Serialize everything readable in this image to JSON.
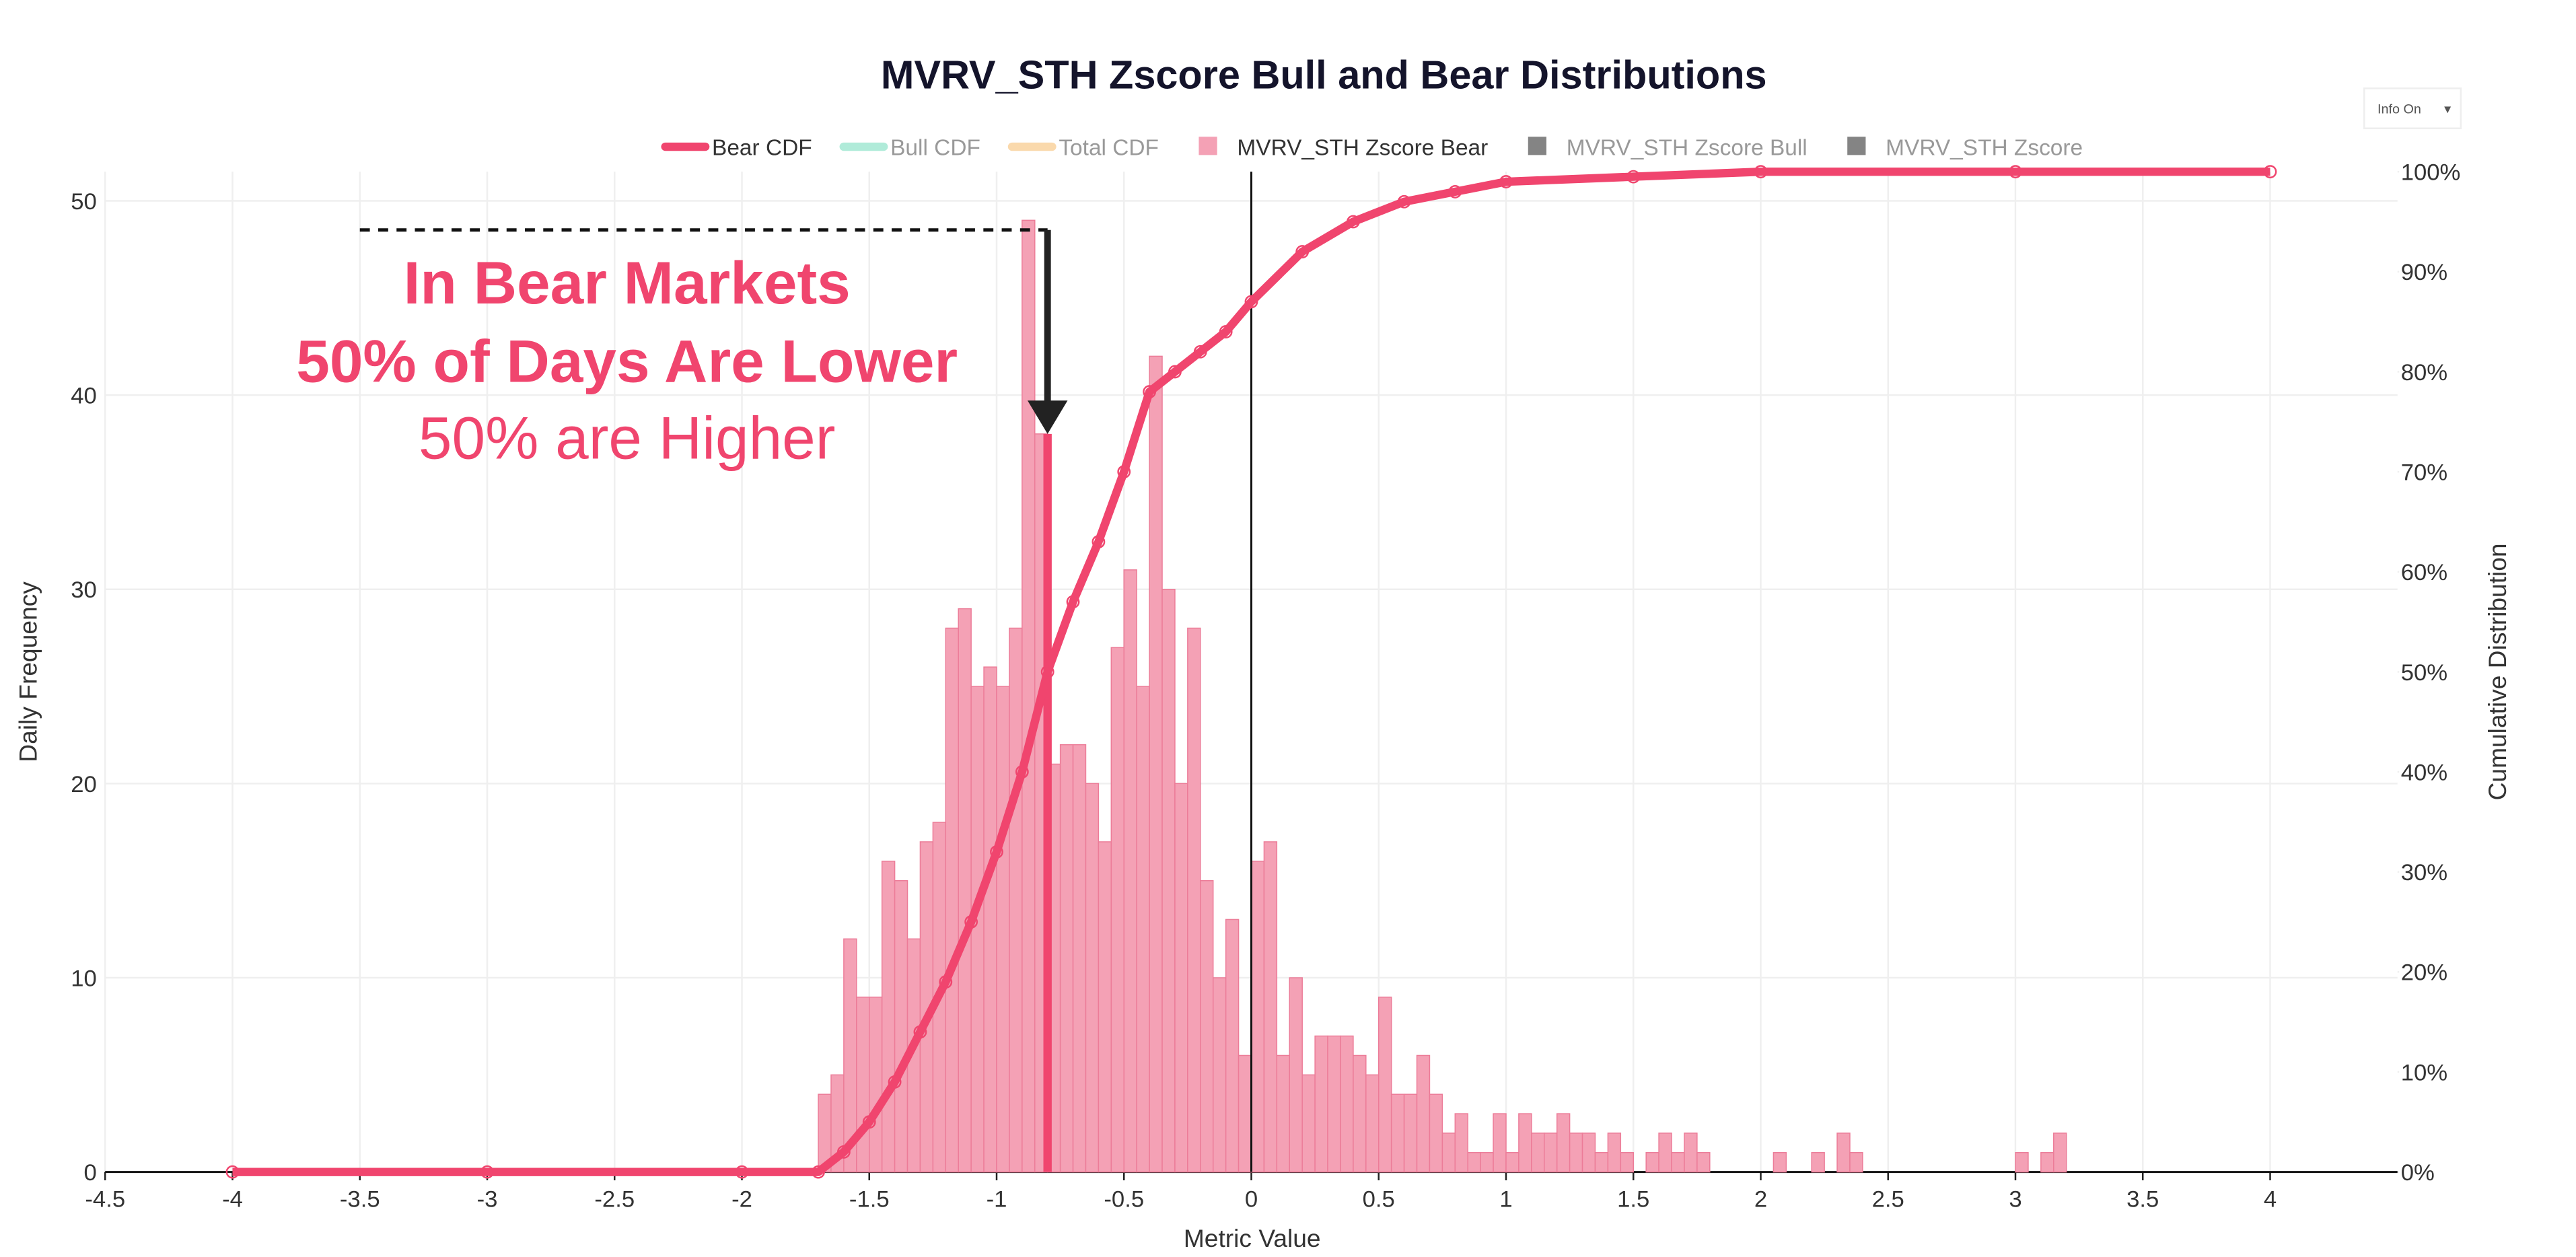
{
  "chart_data": {
    "type": "histogram",
    "title": "MVRV_STH Zscore Bull and Bear Distributions",
    "x_label": "Metric Value",
    "y_label": "Daily Frequency",
    "y2_label": "Cumulative Distribution",
    "xlim": [
      -4.5,
      4.5
    ],
    "xticks": [
      -4.5,
      -4,
      -3.5,
      -3,
      -2.5,
      -2,
      -1.5,
      -1,
      -0.5,
      0,
      0.5,
      1,
      1.5,
      2,
      2.5,
      3,
      3.5,
      4
    ],
    "ylim": [
      0,
      51.5
    ],
    "yticks": [
      0,
      10,
      20,
      30,
      40,
      50
    ],
    "y2lim": [
      0,
      100
    ],
    "y2ticks": [
      {
        "value": 0,
        "label": "0%"
      },
      {
        "value": 10,
        "label": "10%"
      },
      {
        "value": 20,
        "label": "20%"
      },
      {
        "value": 30,
        "label": "30%"
      },
      {
        "value": 40,
        "label": "40%"
      },
      {
        "value": 50,
        "label": "50%"
      },
      {
        "value": 60,
        "label": "60%"
      },
      {
        "value": 70,
        "label": "70%"
      },
      {
        "value": 80,
        "label": "80%"
      },
      {
        "value": 90,
        "label": "90%"
      },
      {
        "value": 100,
        "label": "100%"
      }
    ],
    "grid": true,
    "legend": "top",
    "series": [
      {
        "name": "Bear CDF",
        "color": "#f0456e",
        "type": "line",
        "axis": "y2",
        "visible": true,
        "x": [
          -4,
          -3,
          -2,
          -1.7,
          -1.6,
          -1.5,
          -1.4,
          -1.3,
          -1.2,
          -1.1,
          -1.0,
          -0.9,
          -0.8,
          -0.7,
          -0.6,
          -0.5,
          -0.4,
          -0.3,
          -0.2,
          -0.1,
          0,
          0.2,
          0.4,
          0.6,
          0.8,
          1.0,
          1.5,
          2.0,
          3.0,
          4.0
        ],
        "values": [
          0,
          0,
          0,
          0,
          2,
          5,
          9,
          14,
          19,
          25,
          32,
          40,
          50,
          57,
          63,
          70,
          78,
          80,
          82,
          84,
          87,
          92,
          95,
          97,
          98,
          99,
          99.5,
          100,
          100,
          100
        ]
      },
      {
        "name": "Bull CDF",
        "color": "#8fe3c9",
        "type": "line",
        "visible": false
      },
      {
        "name": "Total CDF",
        "color": "#f9c98a",
        "type": "line",
        "visible": false
      },
      {
        "name": "MVRV_STH Zscore Bear",
        "color": "#f4a1b5",
        "type": "histogram",
        "visible": true,
        "bins": [
          -1.7,
          -1.65,
          -1.6,
          -1.55,
          -1.5,
          -1.45,
          -1.4,
          -1.35,
          -1.3,
          -1.25,
          -1.2,
          -1.15,
          -1.1,
          -1.05,
          -1,
          -0.95,
          -0.9,
          -0.85,
          -0.8,
          -0.75,
          -0.7,
          -0.65,
          -0.6,
          -0.55,
          -0.5,
          -0.45,
          -0.4,
          -0.35,
          -0.3,
          -0.25,
          -0.2,
          -0.15,
          -0.1,
          -0.05,
          0,
          0.05,
          0.1,
          0.15,
          0.2,
          0.25,
          0.3,
          0.35,
          0.4,
          0.45,
          0.5,
          0.55,
          0.6,
          0.65,
          0.7,
          0.75,
          0.8,
          0.85,
          0.9,
          0.95,
          1,
          1.05,
          1.1,
          1.15,
          1.2,
          1.25,
          1.3,
          1.35,
          1.4,
          1.45,
          1.5,
          1.55,
          1.6,
          1.65,
          1.7,
          1.75,
          1.8,
          1.85,
          1.9,
          1.95,
          2,
          2.05,
          2.1,
          2.15,
          2.2,
          2.25,
          2.3,
          2.35,
          2.4,
          2.45,
          2.5,
          2.55,
          2.6,
          2.65,
          2.7,
          2.75,
          2.8,
          2.85,
          2.9,
          2.95,
          3,
          3.05,
          3.1,
          3.15,
          3.2
        ],
        "values": [
          4,
          5,
          12,
          9,
          9,
          16,
          15,
          12,
          17,
          18,
          28,
          29,
          25,
          26,
          25,
          28,
          49,
          38,
          21,
          22,
          22,
          20,
          17,
          27,
          31,
          25,
          42,
          30,
          20,
          28,
          15,
          10,
          13,
          6,
          16,
          17,
          6,
          10,
          5,
          7,
          7,
          7,
          6,
          5,
          9,
          4,
          4,
          6,
          4,
          2,
          3,
          1,
          1,
          3,
          1,
          3,
          2,
          2,
          3,
          2,
          2,
          1,
          2,
          1,
          0,
          1,
          2,
          1,
          2,
          1,
          0,
          0,
          0,
          0,
          0,
          1,
          0,
          0,
          1,
          0,
          2,
          1,
          0,
          0,
          0,
          0,
          0,
          0,
          0,
          0,
          0,
          0,
          0,
          0,
          1,
          0,
          1,
          2
        ]
      },
      {
        "name": "MVRV_STH Zscore Bull",
        "color": "#777777",
        "type": "histogram",
        "visible": false
      },
      {
        "name": "MVRV_STH Zscore",
        "color": "#777777",
        "type": "histogram",
        "visible": false
      }
    ],
    "zero_line_x": 0,
    "median_line": {
      "x": -0.8,
      "y": 38,
      "color": "#f0456e"
    },
    "guide_arrow": {
      "x_start": -3.5,
      "x_end": -0.8,
      "y": 48.5,
      "y_end": 38
    },
    "annotations": [
      "In Bear Markets",
      "50% of Days Are Lower",
      "50% are Higher"
    ]
  },
  "controls": {
    "info_button": "Info On",
    "info_caret": "▾"
  }
}
